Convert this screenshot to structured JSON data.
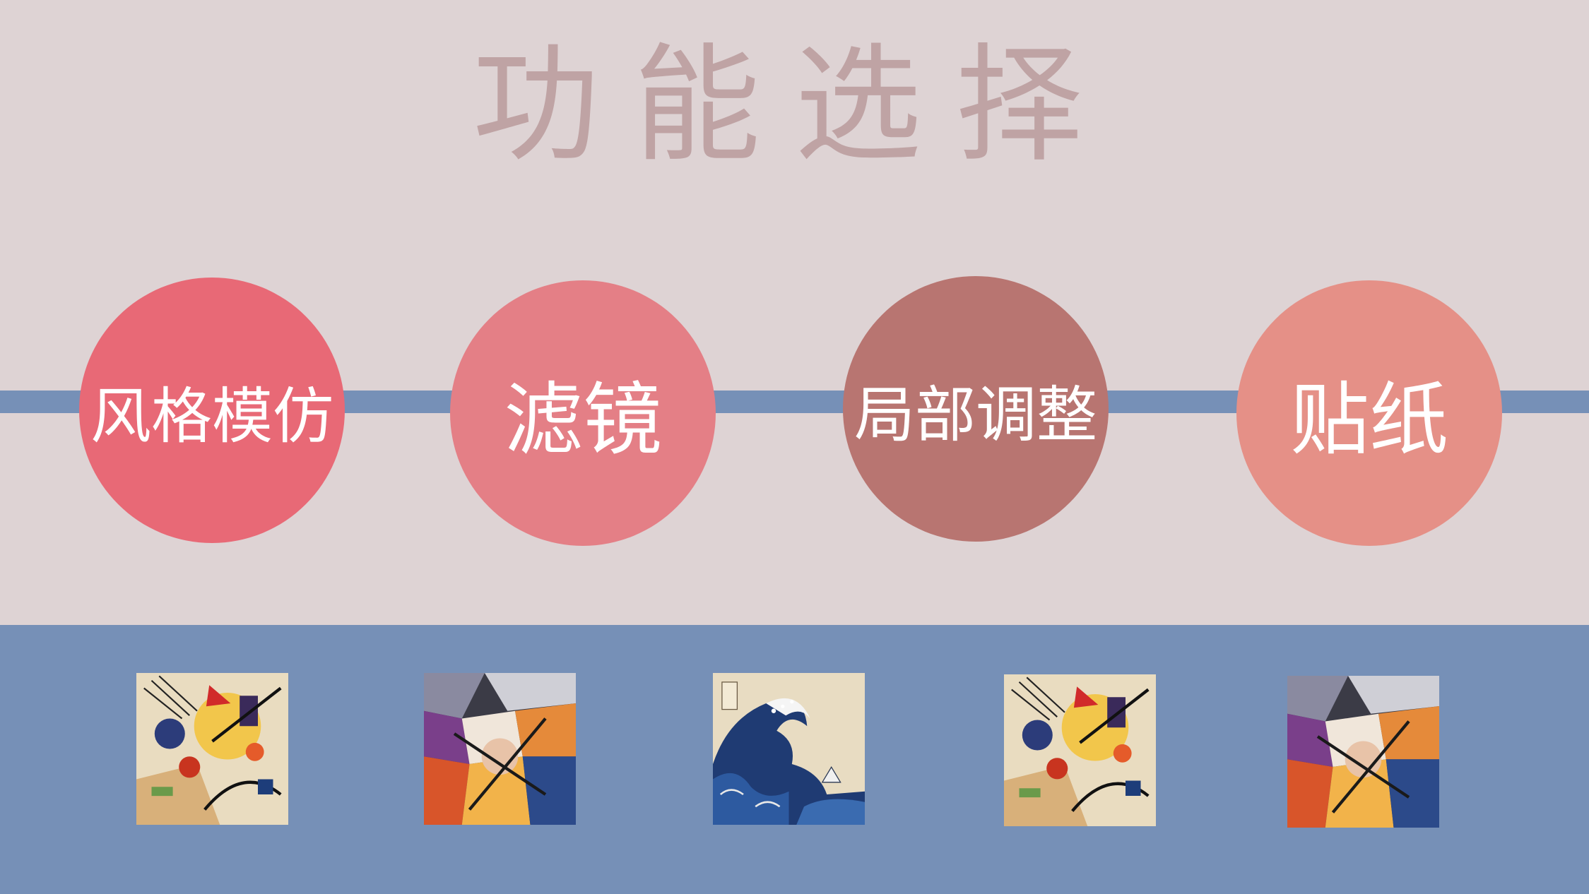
{
  "page": {
    "title": "功能选择",
    "colors": {
      "background": "#ded3d4",
      "title": "#bfa3a4",
      "accent_blue": "#7690b7"
    }
  },
  "functions": [
    {
      "label": "风格模仿",
      "color": "#e86976"
    },
    {
      "label": "滤镜",
      "color": "#e47f86"
    },
    {
      "label": "局部调整",
      "color": "#b87571"
    },
    {
      "label": "贴纸",
      "color": "#e59087"
    }
  ],
  "thumbnails": [
    {
      "icon": "abstract-painting-icon"
    },
    {
      "icon": "cubist-painting-icon"
    },
    {
      "icon": "great-wave-painting-icon"
    },
    {
      "icon": "abstract-painting-icon"
    },
    {
      "icon": "cubist-painting-icon"
    }
  ]
}
